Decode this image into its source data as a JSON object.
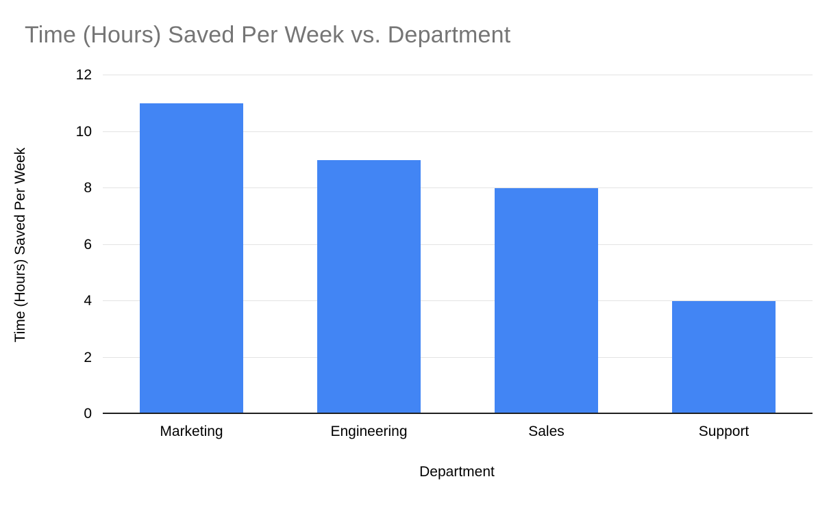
{
  "chart": {
    "title": "Time (Hours) Saved Per Week vs. Department",
    "xlabel": "Department",
    "ylabel": "Time (Hours) Saved Per Week"
  },
  "chart_data": {
    "type": "bar",
    "title": "Time (Hours) Saved Per Week vs. Department",
    "xlabel": "Department",
    "ylabel": "Time (Hours) Saved Per Week",
    "categories": [
      "Marketing",
      "Engineering",
      "Sales",
      "Support"
    ],
    "values": [
      11,
      9,
      8,
      4
    ],
    "ylim": [
      0,
      12
    ],
    "yticks": [
      0,
      2,
      4,
      6,
      8,
      10,
      12
    ],
    "bar_color": "#4285F4",
    "title_color": "#757575",
    "grid": "horizontal",
    "legend": "none",
    "background": "#ffffff"
  }
}
